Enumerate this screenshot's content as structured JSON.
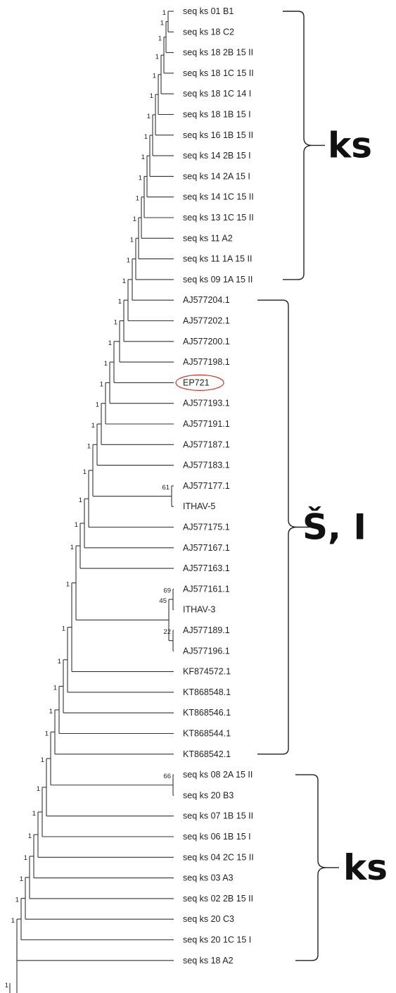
{
  "leaves": [
    "seq ks 01 B1",
    "seq ks 18 C2",
    "seq ks 18 2B 15 II",
    "seq ks 18 1C 15 II",
    "seq ks 18 1C 14 I",
    "seq ks 18 1B 15 I",
    "seq ks 16 1B 15 II",
    "seq ks 14 2B 15 I",
    "seq ks 14 2A 15 I",
    "seq ks 14 1C 15 II",
    "seq ks 13 1C 15 II",
    "seq ks 11 A2",
    "seq ks 11 1A 15 II",
    "seq ks 09 1A 15 II",
    "AJ577204.1",
    "AJ577202.1",
    "AJ577200.1",
    "AJ577198.1",
    "EP721",
    "AJ577193.1",
    "AJ577191.1",
    "AJ577187.1",
    "AJ577183.1",
    "AJ577177.1",
    "ITHAV-5",
    "AJ577175.1",
    "AJ577167.1",
    "AJ577163.1",
    "AJ577161.1",
    "ITHAV-3",
    "AJ577189.1",
    "AJ577196.1",
    "KF874572.1",
    "KT868548.1",
    "KT868546.1",
    "KT868544.1",
    "KT868542.1",
    "seq ks 08 2A 15 II",
    "seq ks 20 B3",
    "seq ks 07 1B 15 II",
    "seq ks 06 1B 15 I",
    "seq ks 04 2C 15 II",
    "seq ks 03 A3",
    "seq ks 02 2B 15 II",
    "seq ks 20 C3",
    "seq ks 20 1C 15 I",
    "seq ks 18 A2"
  ],
  "highlighted_leaf": "EP721",
  "highlight_color": "#c0392b",
  "support_values": {
    "default": "1",
    "AJ577177_ITHAV5": "61",
    "AJ577161_ITHAV3": "69",
    "AJ577189_group": "45",
    "AJ577189_AJ577196": "22",
    "ks08_ks20B3": "66"
  },
  "groups": [
    {
      "label": "ks"
    },
    {
      "label": "Š, I"
    },
    {
      "label": "ks"
    }
  ]
}
